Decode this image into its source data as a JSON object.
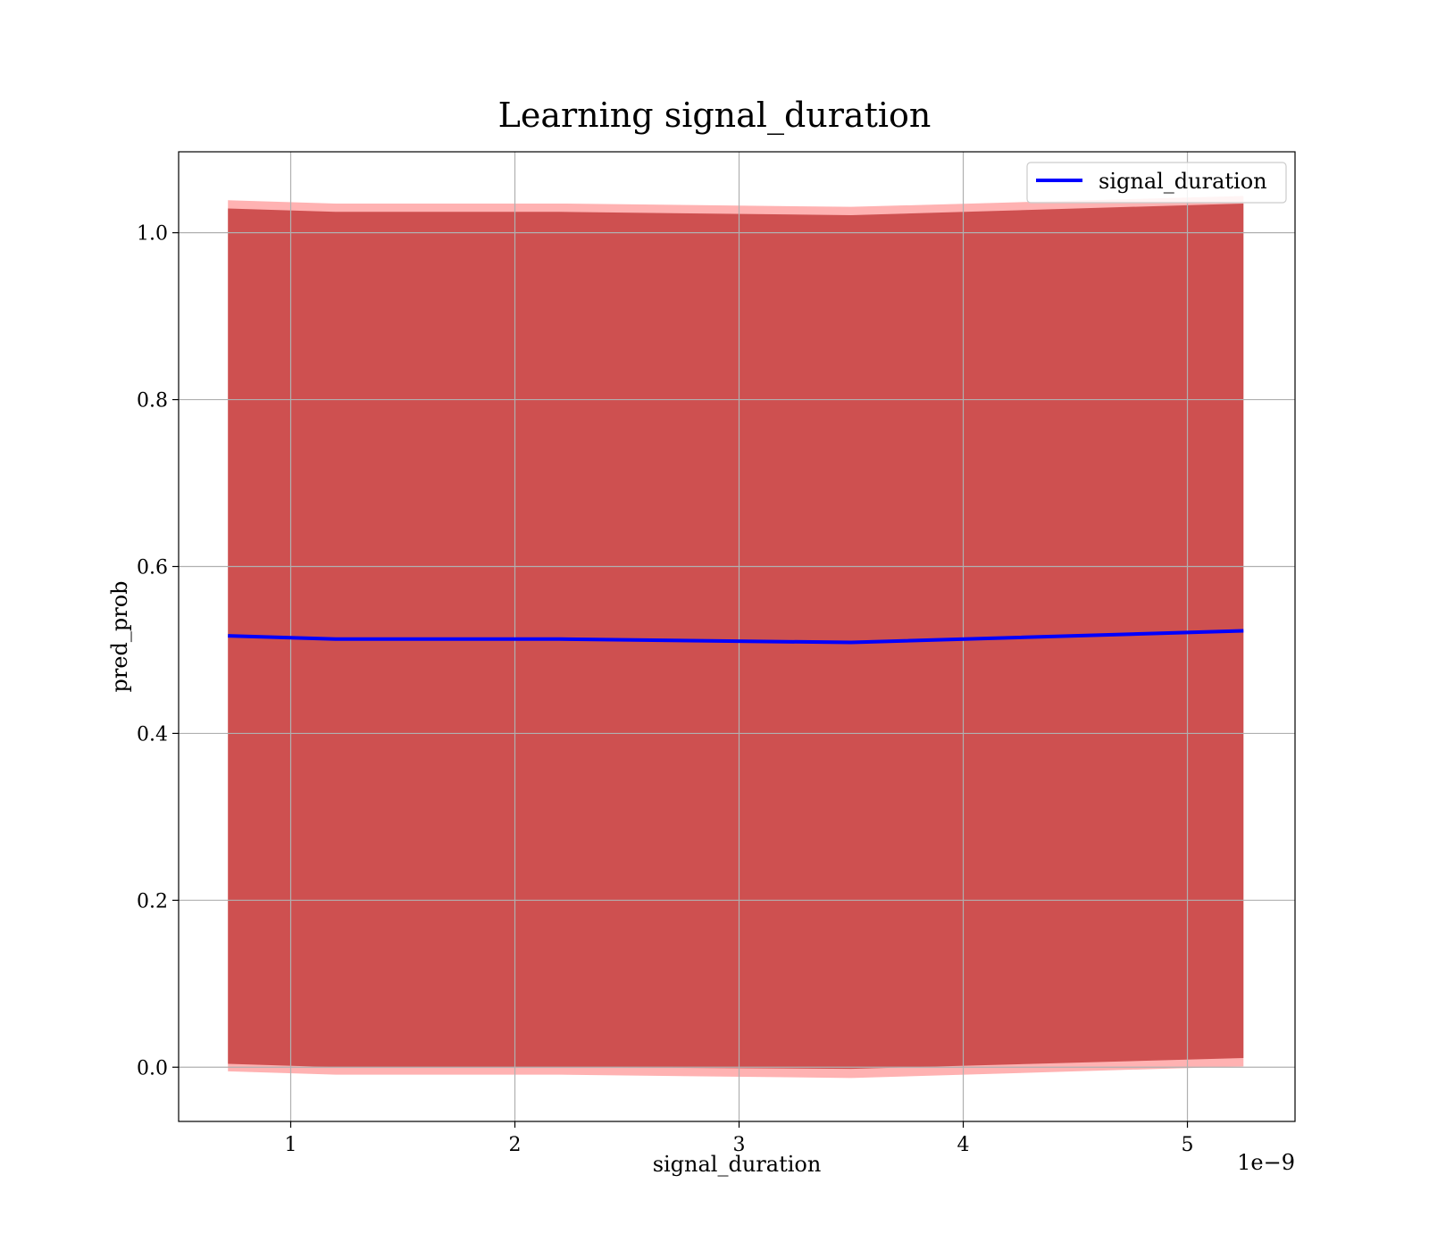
{
  "chart_data": {
    "type": "line",
    "title": "Learning signal_duration",
    "xlabel": "signal_duration",
    "ylabel": "pred_prob",
    "x_offset_label": "1e−9",
    "x_scale_factor": 1e-09,
    "xlim": [
      0.5,
      5.48
    ],
    "ylim": [
      -0.065,
      1.097
    ],
    "xticks": [
      1,
      2,
      3,
      4,
      5
    ],
    "xtick_labels": [
      "1",
      "2",
      "3",
      "4",
      "5"
    ],
    "yticks": [
      0.0,
      0.2,
      0.4,
      0.6,
      0.8,
      1.0
    ],
    "ytick_labels": [
      "0.0",
      "0.2",
      "0.4",
      "0.6",
      "0.8",
      "1.0"
    ],
    "grid": true,
    "legend_position": "upper right",
    "series": [
      {
        "name": "signal_duration",
        "color": "#0000ff",
        "x": [
          0.72,
          1.2,
          2.2,
          3.5,
          5.25
        ],
        "y": [
          0.517,
          0.513,
          0.513,
          0.509,
          0.523
        ]
      }
    ],
    "bands": [
      {
        "color": "#800000",
        "alpha": 0.55,
        "x": [
          0.72,
          1.2,
          2.2,
          3.5,
          5.25
        ],
        "lower": [
          0.004,
          0.0,
          0.0,
          -0.002,
          0.011
        ],
        "upper": [
          1.029,
          1.025,
          1.025,
          1.021,
          1.035
        ]
      },
      {
        "color": "#ff0000",
        "alpha": 0.3,
        "x": [
          0.72,
          1.2,
          2.2,
          3.5,
          5.25
        ],
        "lower": [
          -0.005,
          -0.009,
          -0.009,
          -0.013,
          0.001
        ],
        "upper": [
          1.039,
          1.035,
          1.035,
          1.031,
          1.044
        ]
      }
    ]
  }
}
